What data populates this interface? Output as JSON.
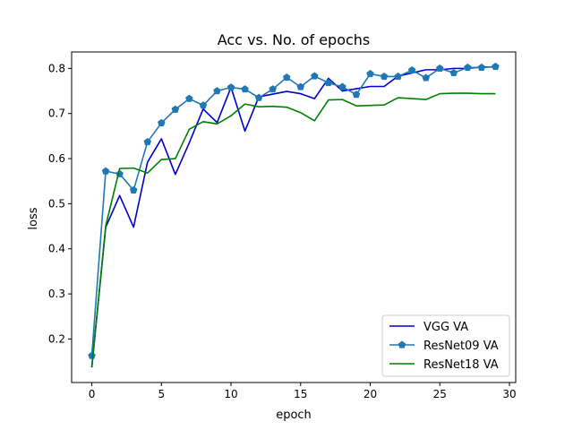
{
  "chart_data": {
    "type": "line",
    "title": "Acc vs. No. of epochs",
    "xlabel": "epoch",
    "ylabel": "loss",
    "xlim": [
      -1.45,
      30.45
    ],
    "ylim": [
      0.1035,
      0.8365
    ],
    "xticks": [
      0,
      5,
      10,
      15,
      20,
      25,
      30
    ],
    "xtick_labels": [
      "0",
      "5",
      "10",
      "15",
      "20",
      "25",
      "30"
    ],
    "yticks": [
      0.2,
      0.3,
      0.4,
      0.5,
      0.6,
      0.7,
      0.8
    ],
    "ytick_labels": [
      "0.2",
      "0.3",
      "0.4",
      "0.5",
      "0.6",
      "0.7",
      "0.8"
    ],
    "grid": false,
    "legend_position": "lower-right",
    "x": [
      0,
      1,
      2,
      3,
      4,
      5,
      6,
      7,
      8,
      9,
      10,
      11,
      12,
      13,
      14,
      15,
      16,
      17,
      18,
      19,
      20,
      21,
      22,
      23,
      24,
      25,
      26,
      27,
      28,
      29
    ],
    "series": [
      {
        "name": "VGG VA",
        "color": "#0000cc",
        "marker": "none",
        "values": [
          0.137,
          0.448,
          0.518,
          0.448,
          0.592,
          0.644,
          0.565,
          0.635,
          0.71,
          0.68,
          0.758,
          0.661,
          0.737,
          0.743,
          0.749,
          0.744,
          0.733,
          0.778,
          0.75,
          0.755,
          0.76,
          0.76,
          0.783,
          0.79,
          0.797,
          0.797,
          0.8,
          0.8,
          0.803,
          0.803
        ]
      },
      {
        "name": "ResNet09 VA",
        "color": "#1f77b4",
        "marker": "pentagon",
        "values": [
          0.163,
          0.572,
          0.566,
          0.53,
          0.637,
          0.679,
          0.709,
          0.733,
          0.718,
          0.75,
          0.758,
          0.754,
          0.735,
          0.754,
          0.78,
          0.759,
          0.783,
          0.768,
          0.759,
          0.742,
          0.788,
          0.782,
          0.782,
          0.796,
          0.779,
          0.8,
          0.79,
          0.802,
          0.802,
          0.804
        ]
      },
      {
        "name": "ResNet18 VA",
        "color": "#008000",
        "marker": "none",
        "values": [
          0.139,
          0.451,
          0.578,
          0.579,
          0.568,
          0.598,
          0.6,
          0.665,
          0.682,
          0.677,
          0.695,
          0.721,
          0.715,
          0.716,
          0.714,
          0.702,
          0.684,
          0.73,
          0.731,
          0.717,
          0.718,
          0.719,
          0.735,
          0.733,
          0.731,
          0.744,
          0.745,
          0.745,
          0.744,
          0.744
        ]
      }
    ]
  }
}
